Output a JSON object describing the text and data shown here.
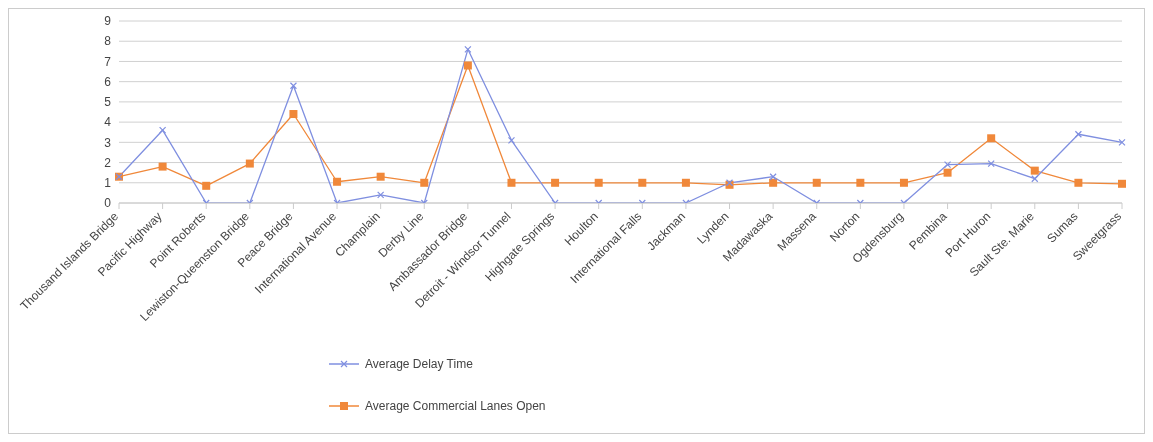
{
  "chart_data": {
    "type": "line",
    "categories": [
      "Thousand Islands Bridge",
      "Pacific Highway",
      "Point Roberts",
      "Lewiston-Queenston  Bridge",
      "Peace Bridge",
      "International Avenue",
      "Champlain",
      "Derby Line",
      "Ambassador Bridge",
      "Detroit - Windsor Tunnel",
      "Highgate Springs",
      "Houlton",
      "International Falls",
      "Jackman",
      "Lynden",
      "Madawaska",
      "Massena",
      "Norton",
      "Ogdensburg",
      "Pembina",
      "Port Huron",
      "Sault Ste. Marie",
      "Sumas",
      "Sweetgrass"
    ],
    "series": [
      {
        "name": "Average Delay Time",
        "color": "#7f8fe0",
        "marker": "cross",
        "values": [
          1.3,
          3.6,
          0,
          0,
          5.8,
          0,
          0.4,
          0,
          7.6,
          3.1,
          0,
          0,
          0,
          0,
          1,
          1.3,
          0,
          0,
          0,
          1.9,
          1.95,
          1.2,
          3.4,
          3.0
        ]
      },
      {
        "name": "Average Commercial Lanes Open",
        "color": "#f0883a",
        "marker": "square",
        "values": [
          1.3,
          1.8,
          0.85,
          1.95,
          4.4,
          1.05,
          1.3,
          1.0,
          6.8,
          1.0,
          1.0,
          1.0,
          1.0,
          1.0,
          0.9,
          1.0,
          1.0,
          1.0,
          1.0,
          1.5,
          3.2,
          1.6,
          1.0,
          0.95
        ]
      }
    ],
    "ylim": [
      0,
      9
    ],
    "yticks": [
      0,
      1,
      2,
      3,
      4,
      5,
      6,
      7,
      8,
      9
    ],
    "grid": "y",
    "legend": "bottom"
  }
}
